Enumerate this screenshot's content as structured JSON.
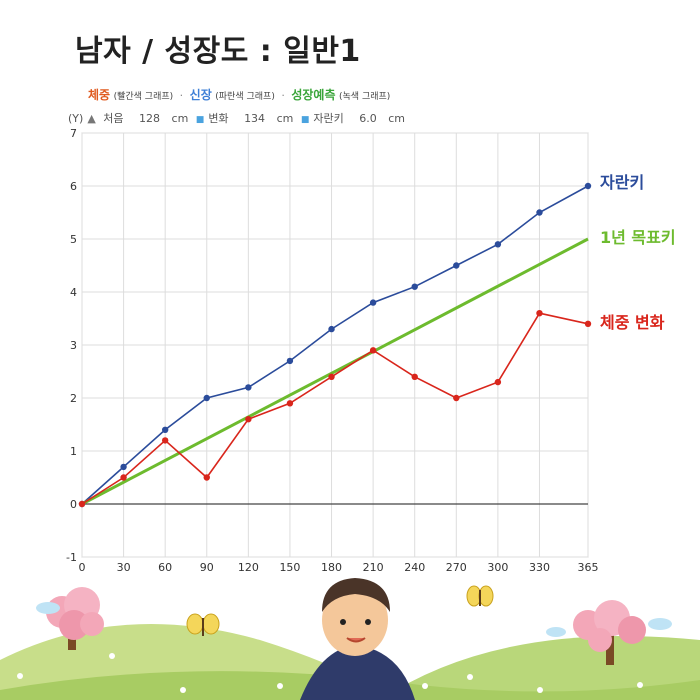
{
  "title": "남자 / 성장도 : 일반1",
  "legend_header": {
    "weight_label": "체중",
    "weight_note": "(빨간색 그래프)",
    "height_label": "신장",
    "height_note": "(파란색 그래프)",
    "predict_label": "성장예측",
    "predict_note": "(녹색 그래프)",
    "separator": "·"
  },
  "info": {
    "axis_marker": "(Y)",
    "start_label": "처음",
    "start_value": "128",
    "start_unit": "cm",
    "change_label": "변화",
    "change_value": "134",
    "change_unit": "cm",
    "growth_label": "자란키",
    "growth_value": "6.0",
    "growth_unit": "cm"
  },
  "colors": {
    "height": "#2b4c9b",
    "weight": "#d9261c",
    "predict": "#6dbb2e",
    "weight_title": "#e05a1f",
    "height_title": "#3d7fd6",
    "predict_title": "#3aa53a"
  },
  "chart_data": {
    "type": "line",
    "x": [
      0,
      30,
      60,
      90,
      120,
      150,
      180,
      210,
      240,
      270,
      300,
      330,
      365
    ],
    "xticks": [
      "0",
      "30",
      "60",
      "90",
      "120",
      "150",
      "180",
      "210",
      "240",
      "270",
      "300",
      "330",
      "365"
    ],
    "yticks": [
      "-1",
      "0",
      "1",
      "2",
      "3",
      "4",
      "5",
      "6",
      "7"
    ],
    "ylim": [
      -1,
      7
    ],
    "xlim": [
      0,
      365
    ],
    "grid": true,
    "series": [
      {
        "name": "자란키",
        "color": "#2b4c9b",
        "markers": true,
        "values": [
          0,
          0.7,
          1.4,
          2.0,
          2.2,
          2.7,
          3.3,
          3.8,
          4.1,
          4.5,
          4.9,
          5.5,
          6.0
        ]
      },
      {
        "name": "1년 목표키",
        "color": "#6dbb2e",
        "markers": false,
        "x": [
          0,
          365
        ],
        "values": [
          0,
          5.0
        ]
      },
      {
        "name": "체중 변화",
        "color": "#d9261c",
        "markers": true,
        "values": [
          0,
          0.5,
          1.2,
          0.5,
          1.6,
          1.9,
          2.4,
          2.9,
          2.4,
          2.0,
          2.3,
          3.6,
          3.4
        ]
      }
    ]
  }
}
